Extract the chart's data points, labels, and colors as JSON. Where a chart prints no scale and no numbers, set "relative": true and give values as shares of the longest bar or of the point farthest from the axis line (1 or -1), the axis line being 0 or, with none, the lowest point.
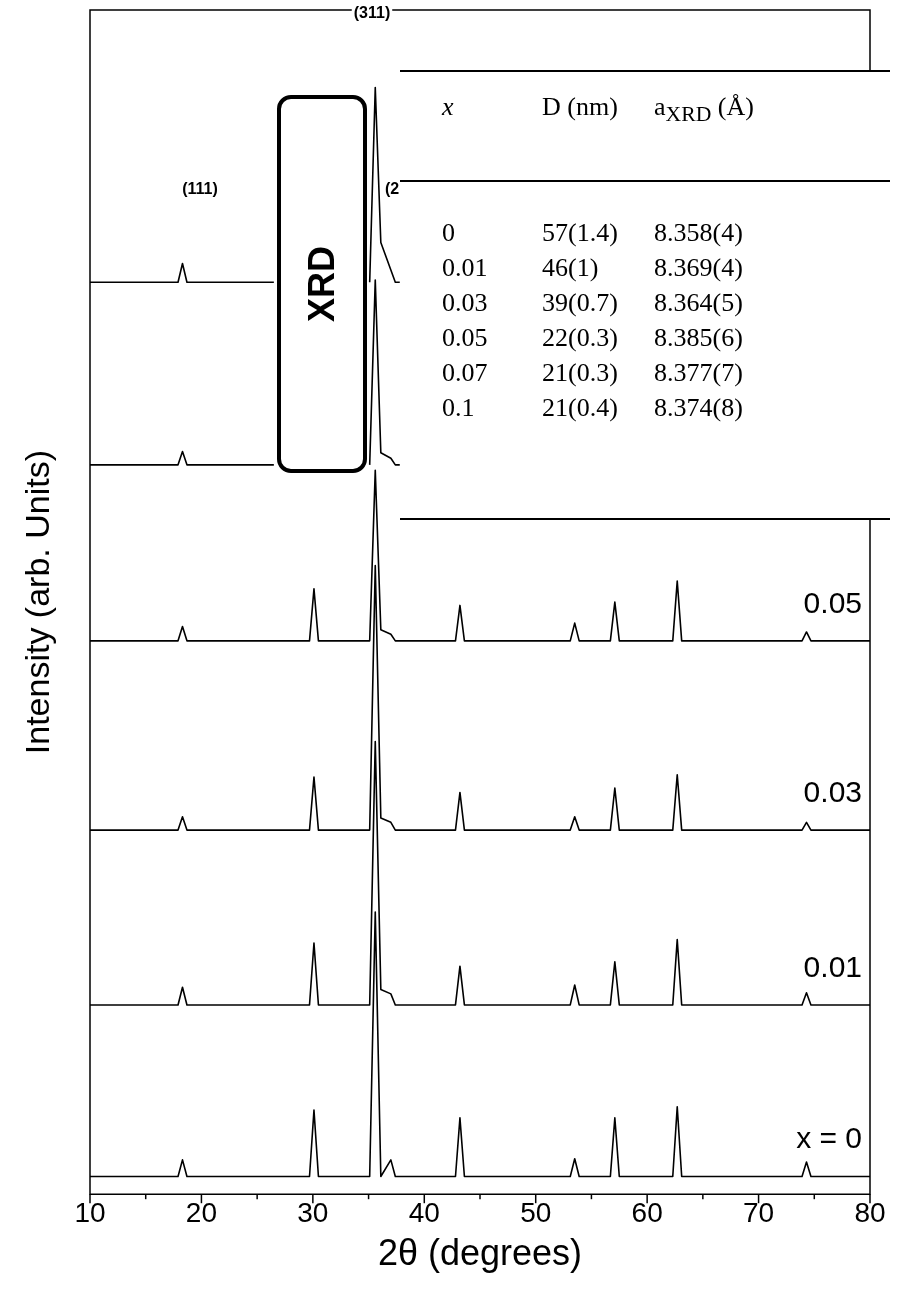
{
  "chart_data": {
    "type": "line",
    "relative": true,
    "xlabel": "2θ (degrees)",
    "ylabel": "Intensity (arb. Units)",
    "xlim": [
      10,
      80
    ],
    "xticks": [
      10,
      {
        "value": 15,
        "label": null
      },
      20,
      {
        "value": 25,
        "label": null
      },
      30,
      {
        "value": 35,
        "label": null
      },
      40,
      {
        "value": 45,
        "label": null
      },
      50,
      {
        "value": 55,
        "label": null
      },
      60,
      {
        "value": 65,
        "label": null
      },
      70,
      {
        "value": 75,
        "label": null
      },
      80
    ],
    "grid": false,
    "legend": false,
    "marker": "none",
    "line_style": "solid",
    "x": [
      10,
      17.9,
      18.3,
      18.7,
      26.5,
      29.7,
      30.1,
      30.5,
      35.1,
      35.6,
      36.1,
      37.0,
      37.4,
      37.8,
      42.8,
      43.2,
      43.6,
      53.1,
      53.5,
      53.9,
      56.7,
      57.1,
      57.5,
      62.3,
      62.7,
      63.1,
      73.9,
      74.3,
      74.7,
      80
    ],
    "series": [
      {
        "name": "x = 0",
        "color": "#000000",
        "values": [
          0.016,
          0.016,
          0.031,
          0.016,
          0.016,
          0.016,
          0.076,
          0.016,
          0.016,
          0.255,
          0.016,
          0.031,
          0.016,
          0.016,
          0.016,
          0.069,
          0.016,
          0.016,
          0.032,
          0.016,
          0.016,
          0.069,
          0.016,
          0.016,
          0.079,
          0.016,
          0.016,
          0.029,
          0.016,
          0.016
        ]
      },
      {
        "name": "0.01",
        "color": "#000000",
        "values": [
          0.171,
          0.171,
          0.187,
          0.171,
          0.171,
          0.171,
          0.227,
          0.171,
          0.171,
          0.409,
          0.185,
          0.181,
          0.171,
          0.171,
          0.171,
          0.206,
          0.171,
          0.171,
          0.189,
          0.171,
          0.171,
          0.21,
          0.171,
          0.171,
          0.23,
          0.171,
          0.171,
          0.182,
          0.171,
          0.171
        ]
      },
      {
        "name": "0.03",
        "color": "#000000",
        "values": [
          0.329,
          0.329,
          0.341,
          0.329,
          0.329,
          0.329,
          0.377,
          0.329,
          0.329,
          0.568,
          0.34,
          0.336,
          0.329,
          0.329,
          0.329,
          0.363,
          0.329,
          0.329,
          0.341,
          0.329,
          0.329,
          0.367,
          0.329,
          0.329,
          0.379,
          0.329,
          0.329,
          0.336,
          0.329,
          0.329
        ]
      },
      {
        "name": "0.05",
        "color": "#000000",
        "values": [
          0.5,
          0.5,
          0.513,
          0.5,
          0.5,
          0.5,
          0.547,
          0.5,
          0.5,
          0.654,
          0.51,
          0.506,
          0.5,
          0.5,
          0.5,
          0.532,
          0.5,
          0.5,
          0.516,
          0.5,
          0.5,
          0.535,
          0.5,
          0.5,
          0.554,
          0.5,
          0.5,
          0.508,
          0.5,
          0.5
        ]
      },
      {
        "color": "#000000",
        "values": [
          0.659,
          0.659,
          0.671,
          0.659,
          0.659,
          null,
          null,
          null,
          0.659,
          0.826,
          0.67,
          0.665,
          0.659,
          0.659,
          null,
          null,
          null,
          null,
          null,
          null,
          null,
          null,
          null,
          null,
          null,
          null,
          null,
          null,
          null,
          null
        ]
      },
      {
        "color": "#000000",
        "values": [
          0.824,
          0.824,
          0.841,
          0.824,
          0.824,
          null,
          null,
          null,
          0.824,
          1.0,
          0.86,
          0.835,
          0.824,
          0.824,
          null,
          null,
          null,
          null,
          null,
          null,
          null,
          null,
          null,
          null,
          null,
          null,
          null,
          null,
          null,
          null
        ]
      }
    ],
    "annotations": [
      "(111)",
      "(311)",
      "(2",
      "XRD",
      "x",
      "D (nm)",
      "a$_{XRD}$ (Å)",
      "0",
      "57(1.4)",
      "8.358(4)",
      "0.01",
      "46(1)",
      "8.369(4)",
      "0.03",
      "39(0.7)",
      "8.364(5)",
      "0.05",
      "22(0.3)",
      "8.385(6)",
      "0.07",
      "21(0.3)",
      "8.377(7)",
      "0.1",
      "21(0.4)",
      "8.374(8)"
    ]
  }
}
